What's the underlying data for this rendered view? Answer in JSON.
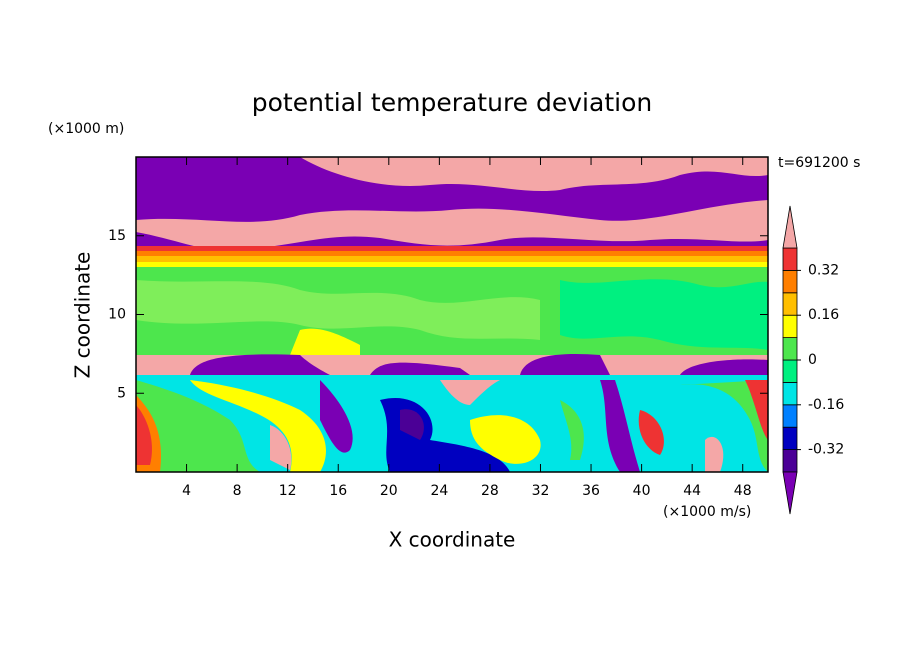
{
  "chart_data": {
    "type": "contour",
    "title": "potential temperature deviation",
    "x_label": "X coordinate",
    "y_label": "Z coordinate",
    "x_unit": "(×1000 m/s)",
    "y_unit": "(×1000 m)",
    "time_label": "t=691200 s",
    "xlim": [
      0,
      50
    ],
    "xticks": [
      4,
      8,
      12,
      16,
      20,
      24,
      28,
      32,
      36,
      40,
      44,
      48
    ],
    "ylim": [
      0,
      20
    ],
    "yticks": [
      5,
      10,
      15
    ],
    "colorbar": {
      "levels": [
        -0.4,
        -0.32,
        -0.24,
        -0.16,
        -0.08,
        0,
        0.08,
        0.16,
        0.24,
        0.32,
        0.4
      ],
      "colors": [
        "#7a00b4",
        "#4b0096",
        "#0000c0",
        "#0080ff",
        "#00e5e5",
        "#00f080",
        "#4de64d",
        "#ffff00",
        "#ffbf00",
        "#ff7f00",
        "#ee3333",
        "#f4a7a7"
      ],
      "ticks": [
        -0.32,
        -0.16,
        0,
        0.16,
        0.32
      ]
    }
  }
}
